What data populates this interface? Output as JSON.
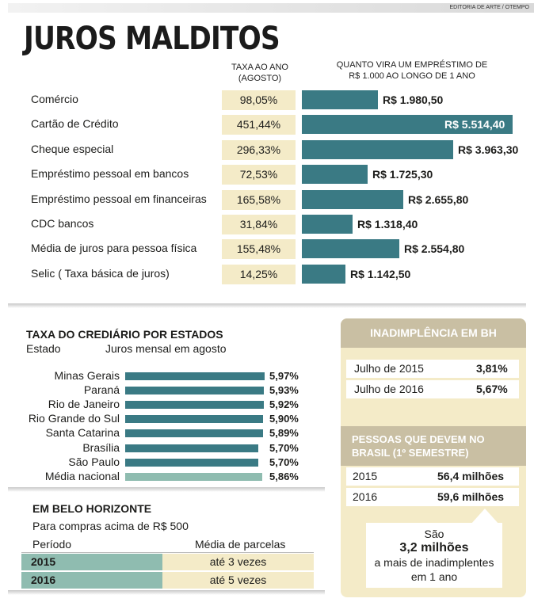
{
  "credit": "EDITORIA DE ARTE / OTEMPO",
  "title": "JUROS MALDITOS",
  "header": {
    "rate_col_line1": "TAXA AO ANO",
    "rate_col_line2": "(AGOSTO)",
    "loan_col_line1": "QUANTO VIRA UM EMPRÉSTIMO DE",
    "loan_col_line2": "R$ 1.000 AO LONGO DE 1 ANO"
  },
  "colors": {
    "teal": "#3a7a84",
    "light_teal": "#8fbcb0",
    "cream": "#f4ebc8",
    "tan": "#c9bfa3"
  },
  "chart_data": [
    {
      "type": "bar",
      "orientation": "horizontal",
      "categories": [
        "Comércio",
        "Cartão de Crédito",
        "Cheque especial",
        "Empréstimo pessoal em bancos",
        "Empréstimo pessoal em financeiras",
        "CDC bancos",
        "Média de juros para pessoa física",
        "Selic ( Taxa básica de juros)"
      ],
      "rates": [
        "98,05%",
        "451,44%",
        "296,33%",
        "72,53%",
        "165,58%",
        "31,84%",
        "155,48%",
        "14,25%"
      ],
      "values": [
        1980.5,
        5514.4,
        3963.3,
        1725.3,
        2655.8,
        1318.4,
        2554.8,
        1142.5
      ],
      "value_labels": [
        "R$ 1.980,50",
        "R$ 5.514,40",
        "R$ 3.963,30",
        "R$ 1.725,30",
        "R$ 2.655,80",
        "R$ 1.318,40",
        "R$ 2.554,80",
        "R$ 1.142,50"
      ]
    },
    {
      "type": "bar",
      "orientation": "horizontal",
      "title": "TAXA DO CREDIÁRIO POR ESTADOS",
      "col_label_left": "Estado",
      "col_label_right": "Juros mensal em agosto",
      "categories": [
        "Minas Gerais",
        "Paraná",
        "Rio de Janeiro",
        "Rio Grande do Sul",
        "Santa Catarina",
        "Brasília",
        "São Paulo",
        "Média nacional"
      ],
      "values": [
        5.97,
        5.93,
        5.92,
        5.9,
        5.89,
        5.7,
        5.7,
        5.86
      ],
      "value_labels": [
        "5,97%",
        "5,93%",
        "5,92%",
        "5,90%",
        "5,89%",
        "5,70%",
        "5,70%",
        "5,86%"
      ]
    }
  ],
  "bh": {
    "title": "EM BELO HORIZONTE",
    "subtitle": "Para compras acima de R$ 500",
    "col_period": "Período",
    "col_installments": "Média de parcelas",
    "rows": [
      {
        "year": "2015",
        "value": "até 3 vezes"
      },
      {
        "year": "2016",
        "value": "até 5 vezes"
      }
    ]
  },
  "default_box": {
    "title": "INADIMPLÊNCIA EM BH",
    "rows": [
      {
        "label": "Julho de 2015",
        "value": "3,81%"
      },
      {
        "label": "Julho de 2016",
        "value": "5,67%"
      }
    ]
  },
  "debtors_box": {
    "title_line1": "PESSOAS QUE DEVEM NO",
    "title_line2": "BRASIL (1º SEMESTRE)",
    "rows": [
      {
        "label": "2015",
        "value": "56,4 milhões"
      },
      {
        "label": "2016",
        "value": "59,6 milhões"
      }
    ],
    "callout_line1": "São",
    "callout_big": "3,2 milhões",
    "callout_line2": "a mais de inadimplentes",
    "callout_line3": "em 1 ano"
  }
}
